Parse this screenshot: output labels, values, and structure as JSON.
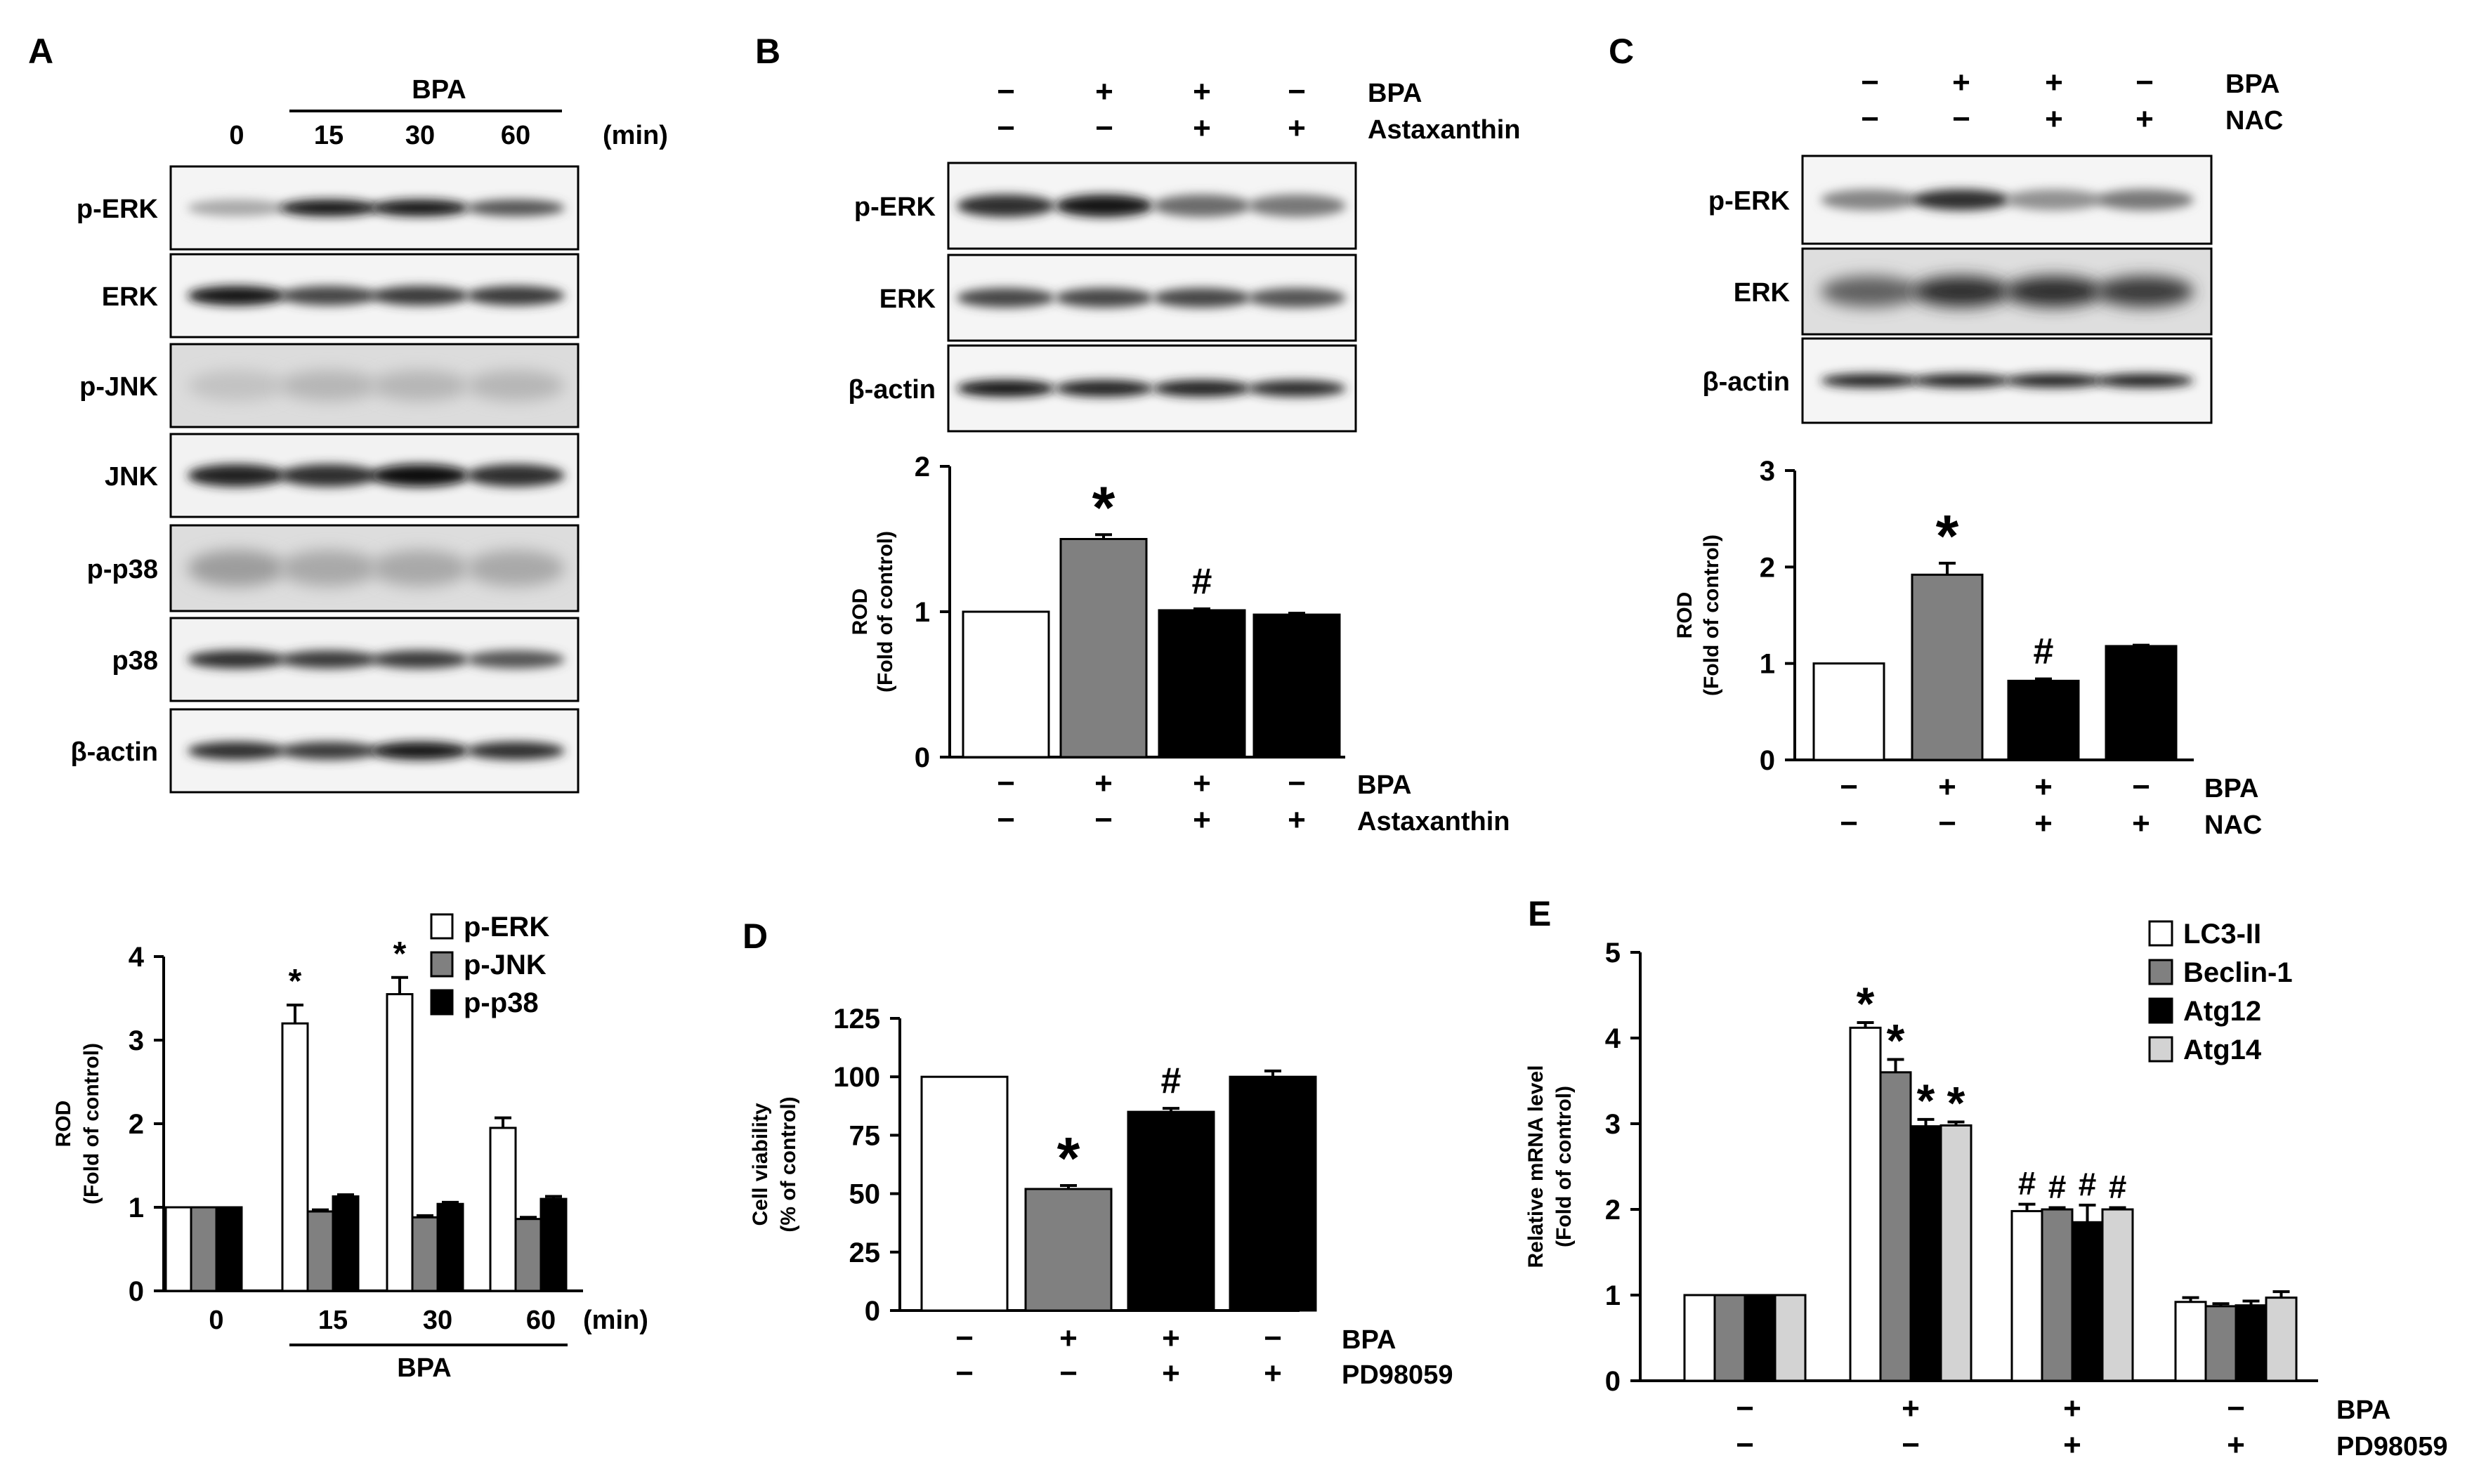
{
  "panels": {
    "A": {
      "letter": "A",
      "treatment_label": "BPA",
      "unit_label": "(min)",
      "lanes": [
        "0",
        "15",
        "30",
        "60"
      ],
      "blots": [
        "p-ERK",
        "ERK",
        "p-JNK",
        "JNK",
        "p-p38",
        "p38",
        "β-actin"
      ]
    },
    "B": {
      "letter": "B",
      "rows": [
        {
          "label": "BPA",
          "signs": [
            "−",
            "+",
            "+",
            "−"
          ]
        },
        {
          "label": "Astaxanthin",
          "signs": [
            "−",
            "−",
            "+",
            "+"
          ]
        }
      ],
      "blots": [
        "p-ERK",
        "ERK",
        "β-actin"
      ]
    },
    "C": {
      "letter": "C",
      "rows": [
        {
          "label": "BPA",
          "signs": [
            "−",
            "+",
            "+",
            "−"
          ]
        },
        {
          "label": "NAC",
          "signs": [
            "−",
            "−",
            "+",
            "+"
          ]
        }
      ],
      "blots": [
        "p-ERK",
        "ERK",
        "β-actin"
      ]
    },
    "D": {
      "letter": "D"
    },
    "E": {
      "letter": "E"
    }
  },
  "chart_data": [
    {
      "panel": "A",
      "type": "bar",
      "ylabel_line1": "ROD",
      "ylabel_line2": "(Fold of control)",
      "ylim": [
        0,
        4
      ],
      "yticks": [
        "0",
        "1",
        "2",
        "3",
        "4"
      ],
      "categories": [
        "0",
        "15",
        "30",
        "60"
      ],
      "xunit": "(min)",
      "group_label": "BPA",
      "series": [
        {
          "name": "p-ERK",
          "color": "#ffffff",
          "values": [
            1.0,
            3.2,
            3.55,
            1.95
          ],
          "errors": [
            0,
            0.22,
            0.2,
            0.12
          ]
        },
        {
          "name": "p-JNK",
          "color": "#808080",
          "values": [
            1.0,
            0.95,
            0.88,
            0.86
          ],
          "errors": [
            0,
            0.02,
            0.02,
            0.02
          ]
        },
        {
          "name": "p-p38",
          "color": "#000000",
          "values": [
            1.0,
            1.13,
            1.04,
            1.1
          ],
          "errors": [
            0,
            0.02,
            0.02,
            0.03
          ]
        }
      ],
      "annotations": [
        {
          "text": "*",
          "category": 1,
          "series": 0
        },
        {
          "text": "*",
          "category": 2,
          "series": 0
        }
      ]
    },
    {
      "panel": "B",
      "type": "bar",
      "ylabel_line1": "ROD",
      "ylabel_line2": "(Fold of control)",
      "ylim": [
        0,
        2
      ],
      "yticks": [
        "0",
        "1",
        "2"
      ],
      "values": [
        1.0,
        1.5,
        1.01,
        0.98
      ],
      "errors": [
        0,
        0.03,
        0.01,
        0.01
      ],
      "colors": [
        "#ffffff",
        "#808080",
        "#000000",
        "#000000"
      ],
      "annotations": [
        {
          "text": "*",
          "bar": 1
        },
        {
          "text": "#",
          "bar": 2
        }
      ],
      "conditions": [
        {
          "label": "BPA",
          "signs": [
            "−",
            "+",
            "+",
            "−"
          ]
        },
        {
          "label": "Astaxanthin",
          "signs": [
            "−",
            "−",
            "+",
            "+"
          ]
        }
      ]
    },
    {
      "panel": "C",
      "type": "bar",
      "ylabel_line1": "ROD",
      "ylabel_line2": "(Fold of control)",
      "ylim": [
        0,
        3
      ],
      "yticks": [
        "0",
        "1",
        "2",
        "3"
      ],
      "values": [
        1.0,
        1.92,
        0.82,
        1.18
      ],
      "errors": [
        0,
        0.12,
        0.02,
        0.01
      ],
      "colors": [
        "#ffffff",
        "#808080",
        "#000000",
        "#000000"
      ],
      "annotations": [
        {
          "text": "*",
          "bar": 1
        },
        {
          "text": "#",
          "bar": 2
        }
      ],
      "conditions": [
        {
          "label": "BPA",
          "signs": [
            "−",
            "+",
            "+",
            "−"
          ]
        },
        {
          "label": "NAC",
          "signs": [
            "−",
            "−",
            "+",
            "+"
          ]
        }
      ]
    },
    {
      "panel": "D",
      "type": "bar",
      "ylabel_line1": "Cell viability",
      "ylabel_line2": "(% of control)",
      "ylim": [
        0,
        125
      ],
      "yticks": [
        "0",
        "25",
        "50",
        "75",
        "100",
        "125"
      ],
      "values": [
        100,
        52,
        85,
        100
      ],
      "errors": [
        0,
        1.5,
        1.5,
        2.5
      ],
      "colors": [
        "#ffffff",
        "#808080",
        "#000000",
        "#000000"
      ],
      "annotations": [
        {
          "text": "*",
          "bar": 1
        },
        {
          "text": "#",
          "bar": 2
        }
      ],
      "conditions": [
        {
          "label": "BPA",
          "signs": [
            "−",
            "+",
            "+",
            "−"
          ]
        },
        {
          "label": "PD98059",
          "signs": [
            "−",
            "−",
            "+",
            "+"
          ]
        }
      ]
    },
    {
      "panel": "E",
      "type": "bar",
      "ylabel_line1": "Relative mRNA level",
      "ylabel_line2": "(Fold of control)",
      "ylim": [
        0,
        5
      ],
      "yticks": [
        "0",
        "1",
        "2",
        "3",
        "4",
        "5"
      ],
      "series": [
        {
          "name": "LC3-II",
          "color": "#ffffff",
          "values": [
            1.0,
            4.12,
            1.98,
            0.92
          ],
          "errors": [
            0,
            0.06,
            0.08,
            0.05
          ]
        },
        {
          "name": "Beclin-1",
          "color": "#808080",
          "values": [
            1.0,
            3.6,
            2.0,
            0.87
          ],
          "errors": [
            0,
            0.15,
            0.02,
            0.03
          ]
        },
        {
          "name": "Atg12",
          "color": "#000000",
          "values": [
            1.0,
            2.97,
            1.85,
            0.88
          ],
          "errors": [
            0,
            0.08,
            0.2,
            0.05
          ]
        },
        {
          "name": "Atg14",
          "color": "#d3d3d3",
          "values": [
            1.0,
            2.98,
            2.0,
            0.97
          ],
          "errors": [
            0,
            0.04,
            0.02,
            0.07
          ]
        }
      ],
      "annotations": [
        {
          "text": "*",
          "group": 1,
          "series": 0
        },
        {
          "text": "*",
          "group": 1,
          "series": 1
        },
        {
          "text": "*",
          "group": 1,
          "series": 2
        },
        {
          "text": "*",
          "group": 1,
          "series": 3
        },
        {
          "text": "#",
          "group": 2,
          "series": 0
        },
        {
          "text": "#",
          "group": 2,
          "series": 1
        },
        {
          "text": "#",
          "group": 2,
          "series": 2
        },
        {
          "text": "#",
          "group": 2,
          "series": 3
        }
      ],
      "conditions": [
        {
          "label": "BPA",
          "signs": [
            "−",
            "+",
            "+",
            "−"
          ]
        },
        {
          "label": "PD98059",
          "signs": [
            "−",
            "−",
            "+",
            "+"
          ]
        }
      ]
    }
  ]
}
